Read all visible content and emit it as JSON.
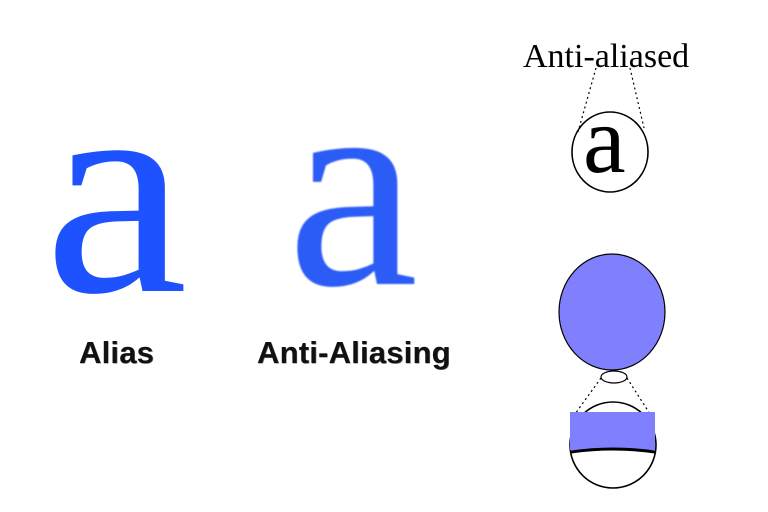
{
  "labels": {
    "alias": "Alias",
    "anti_aliasing": "Anti-Aliasing",
    "anti_aliased": "Anti-aliased"
  },
  "glyphs": {
    "aliased_letter": "a",
    "antialiased_letter": "a",
    "magnified_letter": "a"
  },
  "colors": {
    "alias_blue": "#1f52ff",
    "antialias_blue": "#2b5cf5",
    "pixel_fill": "#8080ff",
    "outline": "#000000"
  }
}
